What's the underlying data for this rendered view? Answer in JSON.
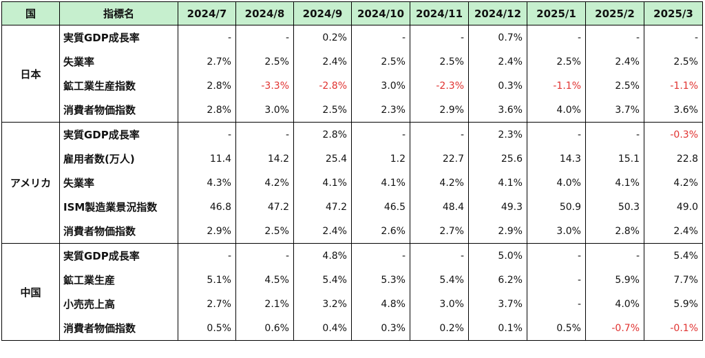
{
  "table": {
    "headers": {
      "country": "国",
      "indicator": "指標名",
      "periods": [
        "2024/7",
        "2024/8",
        "2024/9",
        "2024/10",
        "2024/11",
        "2024/12",
        "2025/1",
        "2025/2",
        "2025/3"
      ]
    },
    "groups": [
      {
        "country": "日本",
        "rows": [
          {
            "name": "実質GDP成長率",
            "values": [
              "-",
              "-",
              "0.2%",
              "-",
              "-",
              "0.7%",
              "-",
              "-",
              "-"
            ],
            "negative": [
              false,
              false,
              false,
              false,
              false,
              false,
              false,
              false,
              false
            ]
          },
          {
            "name": "失業率",
            "values": [
              "2.7%",
              "2.5%",
              "2.4%",
              "2.5%",
              "2.5%",
              "2.4%",
              "2.5%",
              "2.4%",
              "2.5%"
            ],
            "negative": [
              false,
              false,
              false,
              false,
              false,
              false,
              false,
              false,
              false
            ]
          },
          {
            "name": "鉱工業生産指数",
            "values": [
              "2.8%",
              "-3.3%",
              "-2.8%",
              "3.0%",
              "-2.3%",
              "0.3%",
              "-1.1%",
              "2.5%",
              "-1.1%"
            ],
            "negative": [
              false,
              true,
              true,
              false,
              true,
              false,
              true,
              false,
              true
            ]
          },
          {
            "name": "消費者物価指数",
            "values": [
              "2.8%",
              "3.0%",
              "2.5%",
              "2.3%",
              "2.9%",
              "3.6%",
              "4.0%",
              "3.7%",
              "3.6%"
            ],
            "negative": [
              false,
              false,
              false,
              false,
              false,
              false,
              false,
              false,
              false
            ]
          }
        ]
      },
      {
        "country": "アメリカ",
        "rows": [
          {
            "name": "実質GDP成長率",
            "values": [
              "-",
              "-",
              "2.8%",
              "-",
              "-",
              "2.3%",
              "-",
              "-",
              "-0.3%"
            ],
            "negative": [
              false,
              false,
              false,
              false,
              false,
              false,
              false,
              false,
              true
            ]
          },
          {
            "name": "雇用者数(万人)",
            "values": [
              "11.4",
              "14.2",
              "25.4",
              "1.2",
              "22.7",
              "25.6",
              "14.3",
              "15.1",
              "22.8"
            ],
            "negative": [
              false,
              false,
              false,
              false,
              false,
              false,
              false,
              false,
              false
            ]
          },
          {
            "name": "失業率",
            "values": [
              "4.3%",
              "4.2%",
              "4.1%",
              "4.1%",
              "4.2%",
              "4.1%",
              "4.0%",
              "4.1%",
              "4.2%"
            ],
            "negative": [
              false,
              false,
              false,
              false,
              false,
              false,
              false,
              false,
              false
            ]
          },
          {
            "name": "ISM製造業景況指数",
            "values": [
              "46.8",
              "47.2",
              "47.2",
              "46.5",
              "48.4",
              "49.3",
              "50.9",
              "50.3",
              "49.0"
            ],
            "negative": [
              false,
              false,
              false,
              false,
              false,
              false,
              false,
              false,
              false
            ]
          },
          {
            "name": "消費者物価指数",
            "values": [
              "2.9%",
              "2.5%",
              "2.4%",
              "2.6%",
              "2.7%",
              "2.9%",
              "3.0%",
              "2.8%",
              "2.4%"
            ],
            "negative": [
              false,
              false,
              false,
              false,
              false,
              false,
              false,
              false,
              false
            ]
          }
        ]
      },
      {
        "country": "中国",
        "rows": [
          {
            "name": "実質GDP成長率",
            "values": [
              "-",
              "-",
              "4.8%",
              "-",
              "-",
              "5.0%",
              "-",
              "-",
              "5.4%"
            ],
            "negative": [
              false,
              false,
              false,
              false,
              false,
              false,
              false,
              false,
              false
            ]
          },
          {
            "name": "鉱工業生産",
            "values": [
              "5.1%",
              "4.5%",
              "5.4%",
              "5.3%",
              "5.4%",
              "6.2%",
              "-",
              "5.9%",
              "7.7%"
            ],
            "negative": [
              false,
              false,
              false,
              false,
              false,
              false,
              false,
              false,
              false
            ]
          },
          {
            "name": "小売売上高",
            "values": [
              "2.7%",
              "2.1%",
              "3.2%",
              "4.8%",
              "3.0%",
              "3.7%",
              "-",
              "4.0%",
              "5.9%"
            ],
            "negative": [
              false,
              false,
              false,
              false,
              false,
              false,
              false,
              false,
              false
            ]
          },
          {
            "name": "消費者物価指数",
            "values": [
              "0.5%",
              "0.6%",
              "0.4%",
              "0.3%",
              "0.2%",
              "0.1%",
              "0.5%",
              "-0.7%",
              "-0.1%"
            ],
            "negative": [
              false,
              false,
              false,
              false,
              false,
              false,
              false,
              true,
              true
            ]
          }
        ]
      }
    ]
  },
  "colors": {
    "header_bg": "#c6efce",
    "negative_text": "#e0312f",
    "border": "#000000"
  }
}
